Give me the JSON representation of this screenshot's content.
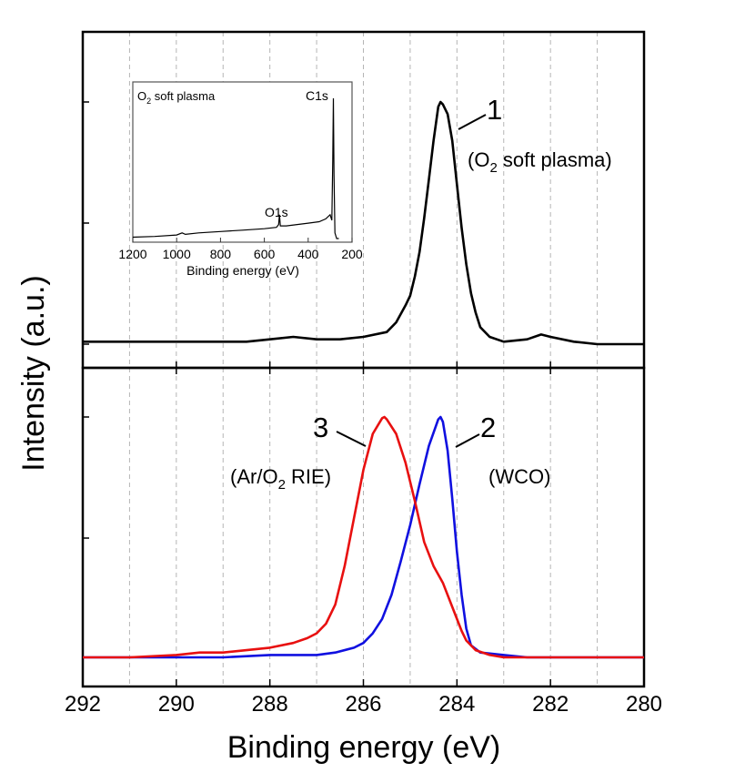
{
  "chart_data": {
    "type": "line",
    "ylabel": "Intensity (a.u.)",
    "xlabel": "Binding energy (eV)",
    "xlim": [
      292,
      280
    ],
    "xticks": [
      292,
      290,
      288,
      286,
      284,
      282,
      280
    ],
    "grid_x": [
      291,
      290,
      289,
      288,
      287,
      286,
      285,
      284,
      283,
      282,
      281
    ],
    "panels": [
      {
        "name": "top",
        "series": [
          {
            "name": "O2 soft plasma",
            "label_number": "1",
            "label_text_parts": [
              "(O",
              "2",
              " soft plasma)"
            ],
            "color": "#000000",
            "points": [
              [
                292,
                0.01
              ],
              [
                291,
                0.01
              ],
              [
                290,
                0.01
              ],
              [
                289,
                0.01
              ],
              [
                288.5,
                0.01
              ],
              [
                288,
                0.02
              ],
              [
                287.5,
                0.03
              ],
              [
                287,
                0.02
              ],
              [
                286.5,
                0.02
              ],
              [
                286,
                0.03
              ],
              [
                285.5,
                0.05
              ],
              [
                285.3,
                0.09
              ],
              [
                285.1,
                0.16
              ],
              [
                285,
                0.2
              ],
              [
                284.9,
                0.28
              ],
              [
                284.8,
                0.38
              ],
              [
                284.7,
                0.52
              ],
              [
                284.6,
                0.68
              ],
              [
                284.5,
                0.84
              ],
              [
                284.4,
                0.98
              ],
              [
                284.35,
                1.0
              ],
              [
                284.3,
                0.99
              ],
              [
                284.2,
                0.95
              ],
              [
                284.1,
                0.84
              ],
              [
                284.0,
                0.66
              ],
              [
                283.9,
                0.48
              ],
              [
                283.8,
                0.33
              ],
              [
                283.7,
                0.21
              ],
              [
                283.6,
                0.13
              ],
              [
                283.5,
                0.07
              ],
              [
                283.3,
                0.03
              ],
              [
                283,
                0.01
              ],
              [
                282.5,
                0.02
              ],
              [
                282.2,
                0.04
              ],
              [
                282,
                0.03
              ],
              [
                281.5,
                0.01
              ],
              [
                281,
                0.0
              ],
              [
                280.5,
                0.0
              ],
              [
                280,
                0.0
              ]
            ]
          }
        ]
      },
      {
        "name": "bottom",
        "series": [
          {
            "name": "WCO",
            "label_number": "2",
            "label_text_parts": [
              "(WCO)"
            ],
            "color": "#1010e0",
            "points": [
              [
                292,
                0.0
              ],
              [
                291,
                0.0
              ],
              [
                290,
                0.0
              ],
              [
                289,
                0.0
              ],
              [
                288,
                0.01
              ],
              [
                287,
                0.01
              ],
              [
                286.6,
                0.02
              ],
              [
                286.2,
                0.04
              ],
              [
                286,
                0.06
              ],
              [
                285.8,
                0.1
              ],
              [
                285.6,
                0.16
              ],
              [
                285.4,
                0.26
              ],
              [
                285.2,
                0.4
              ],
              [
                285,
                0.55
              ],
              [
                284.8,
                0.72
              ],
              [
                284.6,
                0.88
              ],
              [
                284.4,
                0.99
              ],
              [
                284.35,
                1.0
              ],
              [
                284.3,
                0.98
              ],
              [
                284.2,
                0.86
              ],
              [
                284.1,
                0.66
              ],
              [
                284.0,
                0.44
              ],
              [
                283.9,
                0.26
              ],
              [
                283.8,
                0.12
              ],
              [
                283.7,
                0.05
              ],
              [
                283.5,
                0.02
              ],
              [
                283,
                0.01
              ],
              [
                282.5,
                0.0
              ],
              [
                281,
                0.0
              ],
              [
                280,
                0.0
              ]
            ]
          },
          {
            "name": "Ar/O2 RIE",
            "label_number": "3",
            "label_text_parts": [
              "(Ar/O",
              "2",
              " RIE)"
            ],
            "color": "#e81010",
            "points": [
              [
                292,
                0.0
              ],
              [
                291,
                0.0
              ],
              [
                290,
                0.01
              ],
              [
                289.5,
                0.02
              ],
              [
                289,
                0.02
              ],
              [
                288.5,
                0.03
              ],
              [
                288,
                0.04
              ],
              [
                287.5,
                0.06
              ],
              [
                287.2,
                0.08
              ],
              [
                287,
                0.1
              ],
              [
                286.8,
                0.14
              ],
              [
                286.6,
                0.22
              ],
              [
                286.4,
                0.38
              ],
              [
                286.2,
                0.58
              ],
              [
                286,
                0.78
              ],
              [
                285.8,
                0.93
              ],
              [
                285.6,
                0.995
              ],
              [
                285.55,
                1.0
              ],
              [
                285.5,
                0.99
              ],
              [
                285.3,
                0.93
              ],
              [
                285.1,
                0.81
              ],
              [
                284.9,
                0.65
              ],
              [
                284.7,
                0.48
              ],
              [
                284.5,
                0.38
              ],
              [
                284.3,
                0.31
              ],
              [
                284.1,
                0.21
              ],
              [
                283.9,
                0.11
              ],
              [
                283.8,
                0.07
              ],
              [
                283.6,
                0.03
              ],
              [
                283.3,
                0.01
              ],
              [
                283,
                0.0
              ],
              [
                282,
                0.0
              ],
              [
                281,
                0.0
              ],
              [
                280,
                0.0
              ]
            ]
          }
        ]
      }
    ],
    "inset": {
      "title_parts": [
        "O",
        "2",
        " soft plasma"
      ],
      "xlabel": "Binding energy (eV)",
      "xlim": [
        1200,
        200
      ],
      "xticks": [
        1200,
        1000,
        800,
        600,
        400,
        200
      ],
      "peak_labels": [
        {
          "text": "C1s",
          "x": 285
        },
        {
          "text": "O1s",
          "x": 531
        }
      ],
      "points": [
        [
          1200,
          0.01
        ],
        [
          1100,
          0.015
        ],
        [
          1000,
          0.025
        ],
        [
          975,
          0.04
        ],
        [
          960,
          0.03
        ],
        [
          900,
          0.04
        ],
        [
          800,
          0.05
        ],
        [
          700,
          0.06
        ],
        [
          600,
          0.07
        ],
        [
          545,
          0.08
        ],
        [
          535,
          0.1
        ],
        [
          531,
          0.17
        ],
        [
          527,
          0.09
        ],
        [
          500,
          0.09
        ],
        [
          400,
          0.11
        ],
        [
          350,
          0.12
        ],
        [
          320,
          0.14
        ],
        [
          300,
          0.17
        ],
        [
          292,
          0.13
        ],
        [
          288,
          0.55
        ],
        [
          285,
          1.0
        ],
        [
          282,
          0.45
        ],
        [
          278,
          0.04
        ],
        [
          270,
          0.0
        ],
        [
          260,
          0.0
        ]
      ]
    }
  }
}
